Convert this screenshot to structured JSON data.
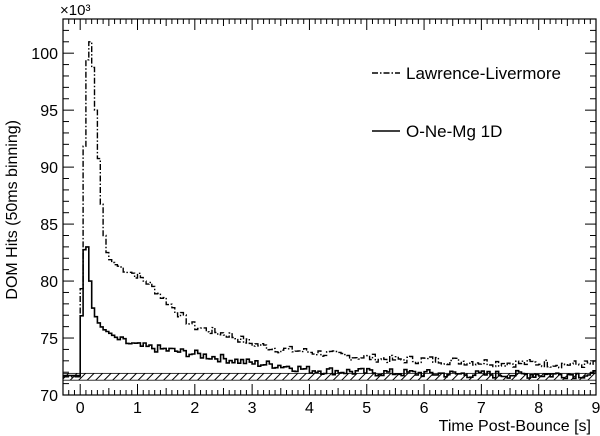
{
  "chart_data": {
    "type": "line",
    "xlabel": "Time Post-Bounce [s]",
    "ylabel": "DOM Hits (50ms binning)",
    "yscale_label": "×10³",
    "xlim": [
      -0.3,
      9.0
    ],
    "ylim": [
      70,
      103
    ],
    "xticks": [
      0,
      1,
      2,
      3,
      4,
      5,
      6,
      7,
      8,
      9
    ],
    "yticks": [
      70,
      75,
      80,
      85,
      90,
      95,
      100
    ],
    "style": "step-histogram",
    "legend_position": "top-right",
    "baseline_band": {
      "ymin": 71.3,
      "ymax": 71.9,
      "pattern": "diagonal-hatch"
    },
    "series": [
      {
        "name": "Lawrence-Livermore",
        "line_style": "dash-dot",
        "points": [
          [
            -0.3,
            71.6
          ],
          [
            0.0,
            71.6
          ],
          [
            0.02,
            78.0
          ],
          [
            0.05,
            86.0
          ],
          [
            0.08,
            93.0
          ],
          [
            0.12,
            99.0
          ],
          [
            0.15,
            101.5
          ],
          [
            0.2,
            100.5
          ],
          [
            0.25,
            97.0
          ],
          [
            0.3,
            93.0
          ],
          [
            0.35,
            88.5
          ],
          [
            0.4,
            85.0
          ],
          [
            0.45,
            83.0
          ],
          [
            0.5,
            82.0
          ],
          [
            0.6,
            81.5
          ],
          [
            0.8,
            81.0
          ],
          [
            1.0,
            80.5
          ],
          [
            1.2,
            79.8
          ],
          [
            1.4,
            78.8
          ],
          [
            1.6,
            77.8
          ],
          [
            1.8,
            76.8
          ],
          [
            2.0,
            76.0
          ],
          [
            2.3,
            75.6
          ],
          [
            2.6,
            75.3
          ],
          [
            3.0,
            74.5
          ],
          [
            3.5,
            74.0
          ],
          [
            4.0,
            73.8
          ],
          [
            4.5,
            73.5
          ],
          [
            5.0,
            73.3
          ],
          [
            5.5,
            73.1
          ],
          [
            6.0,
            73.1
          ],
          [
            6.5,
            73.0
          ],
          [
            7.0,
            72.9
          ],
          [
            7.5,
            72.8
          ],
          [
            8.0,
            72.8
          ],
          [
            8.5,
            72.7
          ],
          [
            9.0,
            72.7
          ]
        ]
      },
      {
        "name": "O-Ne-Mg 1D",
        "line_style": "solid",
        "points": [
          [
            -0.3,
            71.7
          ],
          [
            0.0,
            71.7
          ],
          [
            0.03,
            78.0
          ],
          [
            0.06,
            82.0
          ],
          [
            0.1,
            84.0
          ],
          [
            0.15,
            82.0
          ],
          [
            0.2,
            78.0
          ],
          [
            0.3,
            76.5
          ],
          [
            0.4,
            75.8
          ],
          [
            0.5,
            75.5
          ],
          [
            0.7,
            74.8
          ],
          [
            1.0,
            74.3
          ],
          [
            1.3,
            74.1
          ],
          [
            1.6,
            73.9
          ],
          [
            2.0,
            73.6
          ],
          [
            2.5,
            73.2
          ],
          [
            3.0,
            72.8
          ],
          [
            3.5,
            72.6
          ],
          [
            4.0,
            72.2
          ],
          [
            5.0,
            72.0
          ],
          [
            6.0,
            71.9
          ],
          [
            7.0,
            71.8
          ],
          [
            8.0,
            71.8
          ],
          [
            9.0,
            71.8
          ]
        ]
      }
    ]
  }
}
